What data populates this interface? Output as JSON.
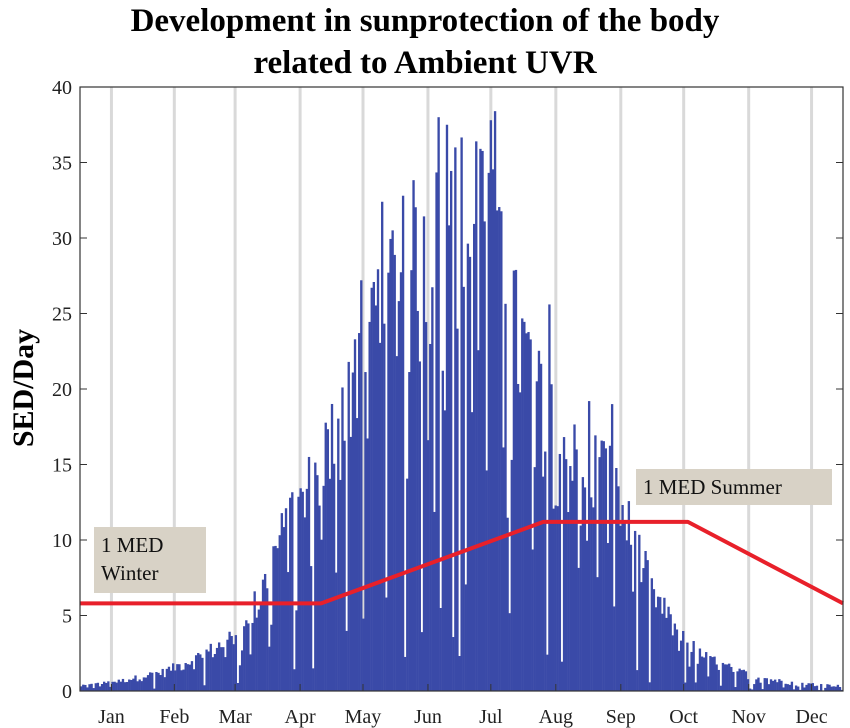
{
  "chart_data": {
    "type": "bar",
    "title": [
      "Development in sunprotection of the body",
      "related to Ambient UVR"
    ],
    "xlabel": "",
    "ylabel": "SED/Day",
    "ylim": [
      0,
      40
    ],
    "yticks": [
      0,
      5,
      10,
      15,
      20,
      25,
      30,
      35,
      40
    ],
    "xlim_day": [
      1,
      365
    ],
    "months": [
      "Jan",
      "Feb",
      "Mar",
      "Apr",
      "May",
      "Jun",
      "Jul",
      "Aug",
      "Sep",
      "Oct",
      "Nov",
      "Dec"
    ],
    "month_label_day": [
      16,
      46,
      75,
      106,
      136,
      167,
      197,
      228,
      259,
      289,
      320,
      350
    ],
    "grid": "vertical",
    "series": [
      {
        "type": "bar",
        "color": "#3a4aa8",
        "envelope_day": [
          1,
          20,
          40,
          55,
          70,
          85,
          95,
          105,
          115,
          125,
          135,
          145,
          155,
          165,
          175,
          185,
          195,
          205,
          215,
          225,
          235,
          245,
          255,
          265,
          275,
          285,
          295,
          305,
          315,
          325,
          335,
          345,
          365
        ],
        "envelope_value": [
          0.4,
          0.8,
          1.5,
          2.5,
          3.8,
          6.5,
          11.5,
          14.0,
          17.0,
          22.0,
          28.0,
          31.0,
          33.0,
          35.0,
          36.5,
          37.5,
          37.0,
          30.0,
          25.5,
          22.0,
          18.0,
          18.5,
          16.0,
          12.0,
          7.5,
          5.0,
          3.2,
          2.2,
          1.6,
          1.1,
          0.8,
          0.6,
          0.4
        ],
        "peaks": [
          {
            "day": 172,
            "value": 38.0
          },
          {
            "day": 176,
            "value": 37.5
          },
          {
            "day": 180,
            "value": 36.0
          },
          {
            "day": 190,
            "value": 36.4
          },
          {
            "day": 199,
            "value": 38.4
          },
          {
            "day": 197,
            "value": 37.8
          },
          {
            "day": 145,
            "value": 32.4
          },
          {
            "day": 155,
            "value": 32.8
          },
          {
            "day": 135,
            "value": 27.2
          },
          {
            "day": 225,
            "value": 25.6
          },
          {
            "day": 244,
            "value": 19.2
          },
          {
            "day": 255,
            "value": 19.0
          },
          {
            "day": 101,
            "value": 12.8
          },
          {
            "day": 110,
            "value": 15.5
          },
          {
            "day": 84,
            "value": 6.6
          }
        ]
      },
      {
        "type": "line",
        "color": "#e8202a",
        "x_day": [
          1,
          116,
          222,
          291,
          365
        ],
        "y": [
          5.8,
          5.8,
          11.2,
          11.2,
          5.8
        ]
      }
    ],
    "annotations": [
      {
        "lines": [
          "1 MED",
          "Winter"
        ]
      },
      {
        "lines": [
          "1 MED Summer"
        ]
      }
    ]
  }
}
